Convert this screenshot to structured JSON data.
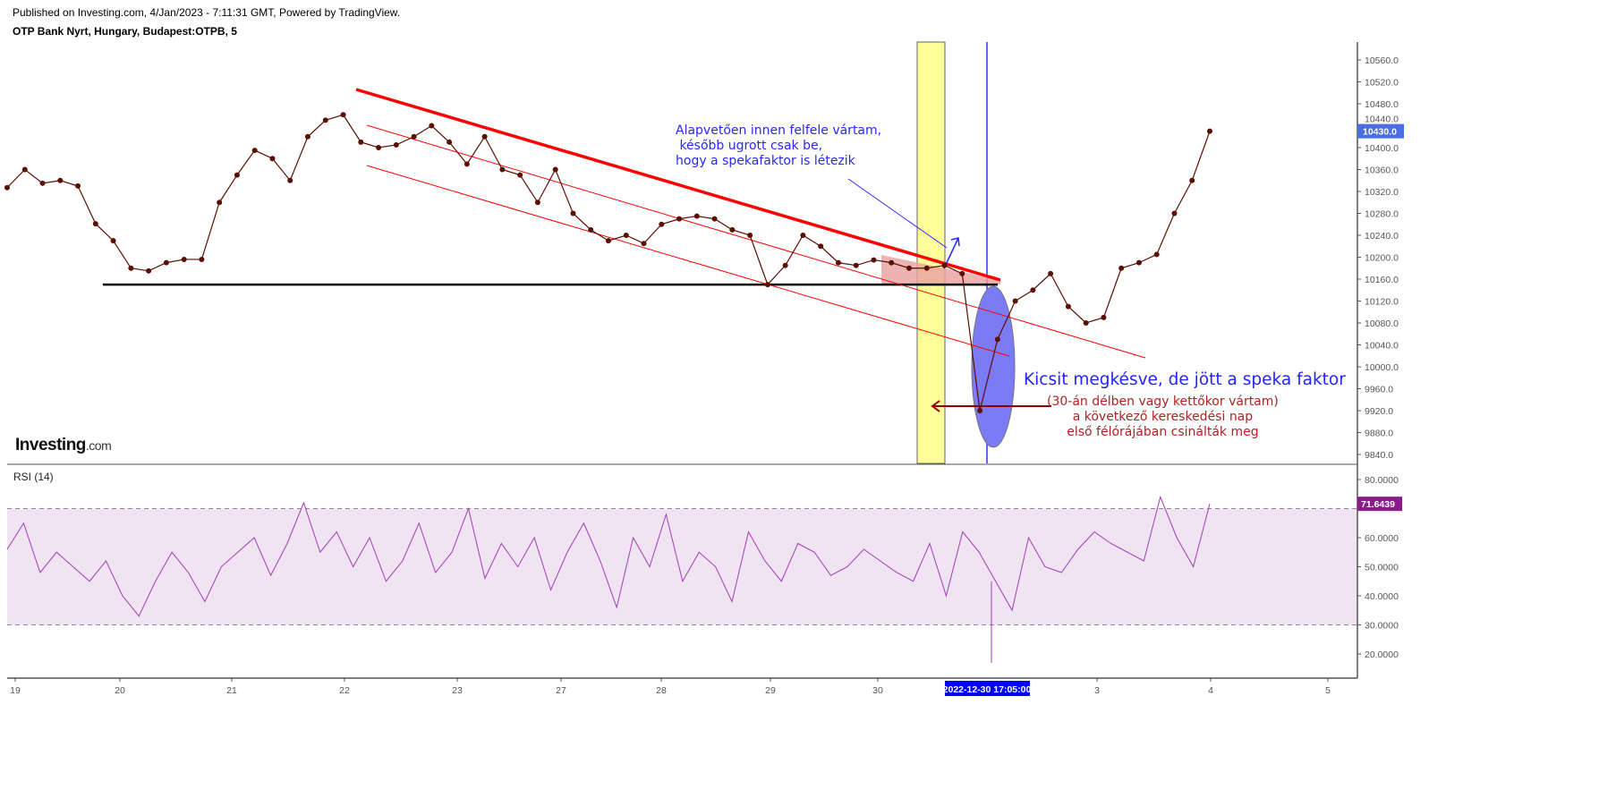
{
  "header": {
    "published": "Published on Investing.com, 4/Jan/2023 - 7:11:31 GMT, Powered by TradingView.",
    "title": "OTP Bank Nyrt, Hungary, Budapest:OTPB, 5"
  },
  "logo": {
    "main": "Investing",
    "suffix": ".com"
  },
  "annotations": {
    "top_note": [
      "Alapvetően innen felfele vártam,",
      " később ugrott csak be,",
      "hogy a spekafaktor is létezik"
    ],
    "main_note": "Kicsit megkésve, de jött a speka faktor",
    "red_note": [
      "(30-án délben vagy kettőkor vártam)",
      "a következő kereskedési nap",
      "első félórájában csinálták meg"
    ]
  },
  "colors": {
    "price": "#5a0f00",
    "trendline": "#ff0000",
    "support": "#000000",
    "rsi": "#a23fb5",
    "rsi_band": "#f0e3f2",
    "highlight_band": "#ffff99",
    "ellipse": "#7b7bf5",
    "last_price_badge": "#4a6ee0",
    "rsi_badge": "#8b1a8b",
    "crosshair_label": "#0000ff",
    "note_blue": "#2828ff",
    "note_red": "#b22222"
  },
  "chart_data": [
    {
      "type": "line",
      "title": "OTP Bank Nyrt, Hungary, Budapest:OTPB, 5",
      "x_tick_labels": [
        "19",
        "20",
        "21",
        "22",
        "23",
        "27",
        "28",
        "29",
        "30",
        "3",
        "4",
        "5"
      ],
      "crosshair_x_label": "2022-12-30 17:05:00",
      "y_ticks": [
        10560.0,
        10520.0,
        10480.0,
        10440.0,
        10400.0,
        10360.0,
        10320.0,
        10280.0,
        10240.0,
        10200.0,
        10160.0,
        10120.0,
        10080.0,
        10040.0,
        10000.0,
        9960.0,
        9920.0,
        9880.0,
        9840.0
      ],
      "ylim": [
        9820,
        10590
      ],
      "last_price": "10430.0",
      "grid": false,
      "markers": true,
      "values": [
        10327,
        10360,
        10335,
        10340,
        10330,
        10261,
        10230,
        10180,
        10175,
        10190,
        10196,
        10196,
        10300,
        10350,
        10395,
        10380,
        10340,
        10420,
        10450,
        10460,
        10410,
        10400,
        10405,
        10420,
        10440,
        10410,
        10370,
        10420,
        10360,
        10350,
        10300,
        10360,
        10280,
        10250,
        10230,
        10240,
        10225,
        10260,
        10270,
        10275,
        10270,
        10250,
        10240,
        10150,
        10185,
        10240,
        10220,
        10190,
        10185,
        10195,
        10190,
        10180,
        10180,
        10185,
        10170,
        9920,
        10050,
        10120,
        10140,
        10170,
        10110,
        10080,
        10090,
        10180,
        10190,
        10205,
        10280,
        10340,
        10430
      ],
      "support_level": 10150,
      "trendlines": [
        {
          "from": [
            "22",
            10500
          ],
          "to": [
            "2022-12-30 17:05:00",
            10155
          ]
        }
      ]
    },
    {
      "type": "line",
      "title": "RSI (14)",
      "y_ticks": [
        "80.0000",
        "60.0000",
        "50.0000",
        "40.0000",
        "30.0000",
        "20.0000"
      ],
      "band": [
        30,
        70
      ],
      "ylim": [
        15,
        85
      ],
      "last_value": "71.6439",
      "values": [
        56,
        65,
        48,
        55,
        50,
        45,
        52,
        40,
        33,
        45,
        55,
        48,
        38,
        50,
        55,
        60,
        47,
        58,
        72,
        55,
        62,
        50,
        60,
        45,
        52,
        65,
        48,
        55,
        70,
        46,
        58,
        50,
        60,
        42,
        55,
        65,
        52,
        36,
        60,
        50,
        68,
        45,
        55,
        50,
        38,
        62,
        52,
        45,
        58,
        55,
        47,
        50,
        56,
        52,
        48,
        45,
        58,
        40,
        62,
        55,
        45,
        35,
        60,
        50,
        48,
        56,
        62,
        58,
        55,
        52,
        74,
        60,
        50,
        71.6439
      ],
      "rsi_drop_low": 17
    }
  ]
}
